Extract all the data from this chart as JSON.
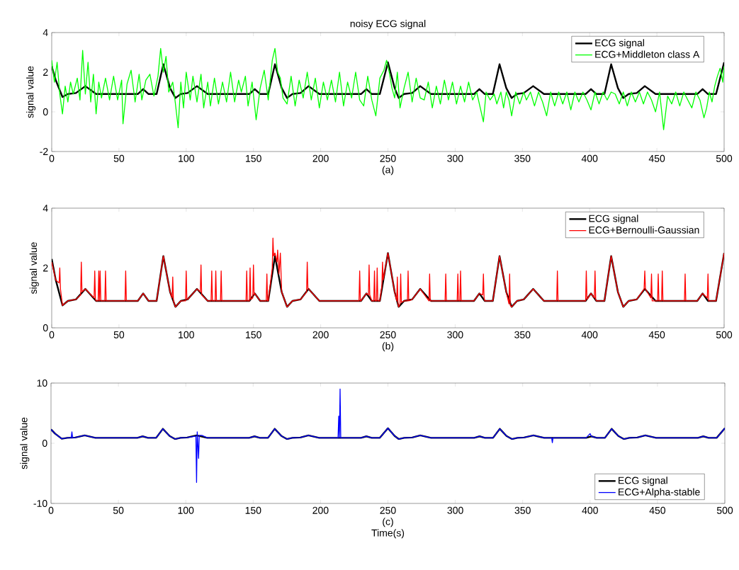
{
  "chart_data": [
    {
      "type": "line",
      "title": "noisy ECG signal",
      "xlabel": "(a)",
      "ylabel": "signal value",
      "xlim": [
        0,
        500
      ],
      "ylim": [
        -2,
        4
      ],
      "xticks": [
        0,
        50,
        100,
        150,
        200,
        250,
        300,
        350,
        400,
        450,
        500
      ],
      "yticks": [
        -2,
        0,
        2,
        4
      ],
      "legend": "top right",
      "series": [
        {
          "name": "ECG signal",
          "color": "#000000",
          "x": [
            0,
            3,
            8,
            12,
            18,
            25,
            33,
            64,
            68,
            72,
            78,
            83,
            88,
            92,
            96,
            101,
            108,
            116,
            147,
            151,
            155,
            161,
            166,
            171,
            175,
            179,
            185,
            191,
            199,
            230,
            234,
            238,
            244,
            250,
            255,
            258,
            262,
            268,
            274,
            282,
            314,
            318,
            322,
            328,
            333,
            338,
            342,
            346,
            351,
            358,
            366,
            397,
            401,
            405,
            411,
            416,
            421,
            425,
            429,
            435,
            441,
            449,
            480,
            484,
            488,
            494,
            500
          ],
          "values": [
            2.3,
            1.6,
            0.75,
            0.9,
            0.95,
            1.3,
            0.9,
            0.9,
            1.15,
            0.9,
            0.9,
            2.4,
            1.2,
            0.7,
            0.9,
            0.95,
            1.3,
            0.9,
            0.9,
            1.15,
            0.9,
            0.9,
            2.4,
            1.2,
            0.7,
            0.9,
            0.95,
            1.3,
            0.9,
            0.9,
            1.15,
            0.9,
            0.9,
            2.5,
            1.2,
            0.7,
            0.9,
            0.95,
            1.3,
            0.9,
            0.9,
            1.15,
            0.9,
            0.9,
            2.4,
            1.2,
            0.7,
            0.9,
            0.95,
            1.3,
            0.9,
            0.9,
            1.15,
            0.9,
            0.9,
            2.4,
            1.2,
            0.7,
            0.9,
            0.95,
            1.3,
            0.9,
            0.9,
            1.15,
            0.9,
            0.9,
            2.5
          ]
        },
        {
          "name": "ECG+Middleton class A",
          "color": "#00ff00",
          "x": [
            0,
            2,
            4,
            6,
            8,
            10,
            12,
            14,
            16,
            19,
            21,
            23,
            25,
            27,
            29,
            31,
            33,
            35,
            37,
            40,
            43,
            46,
            49,
            52,
            53,
            56,
            59,
            62,
            65,
            67,
            70,
            73,
            76,
            79,
            81,
            83,
            85,
            87,
            90,
            92,
            94,
            96,
            98,
            100,
            103,
            105,
            108,
            111,
            113,
            116,
            118,
            121,
            124,
            127,
            130,
            133,
            136,
            139,
            141,
            144,
            146,
            149,
            152,
            155,
            158,
            161,
            164,
            166,
            168,
            170,
            172,
            175,
            178,
            181,
            184,
            187,
            190,
            193,
            196,
            199,
            202,
            205,
            208,
            211,
            214,
            217,
            220,
            223,
            226,
            229,
            232,
            235,
            238,
            241,
            244,
            247,
            249,
            251,
            253,
            255,
            257,
            259,
            262,
            265,
            268,
            271,
            274,
            277,
            280,
            283,
            286,
            289,
            292,
            295,
            298,
            301,
            304,
            307,
            310,
            313,
            316,
            318,
            321,
            323,
            326,
            329,
            331,
            334,
            336,
            338,
            340,
            342,
            345,
            348,
            351,
            353,
            356,
            359,
            362,
            365,
            368,
            371,
            374,
            377,
            380,
            383,
            386,
            389,
            392,
            395,
            398,
            401,
            404,
            407,
            410,
            413,
            416,
            419,
            422,
            425,
            428,
            431,
            434,
            437,
            440,
            443,
            446,
            449,
            452,
            455,
            458,
            461,
            464,
            467,
            470,
            473,
            476,
            479,
            482,
            485,
            487,
            489,
            491,
            493,
            495,
            497,
            499,
            500
          ],
          "values": [
            2.6,
            1.5,
            2.5,
            0.9,
            -0.1,
            1.3,
            0.5,
            1.5,
            0.9,
            1.7,
            0.6,
            3.1,
            0.9,
            2.5,
            0.5,
            1.9,
            -0.1,
            1.5,
            0.7,
            1.7,
            0.6,
            1.8,
            0.6,
            1.6,
            -0.6,
            1.4,
            2.1,
            0.5,
            1.9,
            0.6,
            1.6,
            1.9,
            0.8,
            1.8,
            3.2,
            2.0,
            2.8,
            1.0,
            1.5,
            0.4,
            -0.8,
            1.5,
            0.2,
            2.0,
            0.6,
            1.8,
            0.5,
            1.9,
            0.2,
            1.5,
            0.3,
            1.7,
            0.4,
            1.5,
            0.5,
            2.0,
            0.5,
            1.6,
            1.0,
            1.8,
            0.3,
            1.5,
            -0.4,
            1.2,
            2.1,
            0.6,
            2.6,
            3.2,
            2.0,
            1.7,
            0.7,
            0.4,
            1.8,
            0.3,
            1.6,
            0.7,
            2.0,
            0.6,
            1.7,
            0.2,
            1.5,
            0.6,
            1.6,
            0.5,
            2.0,
            0.3,
            1.5,
            0.7,
            2.0,
            0.6,
            0.3,
            1.8,
            0.6,
            -0.2,
            1.7,
            2.1,
            2.6,
            2.0,
            1.2,
            0.7,
            2.0,
            0.2,
            1.2,
            2.0,
            0.5,
            1.7,
            0.7,
            0.6,
            1.5,
            0.2,
            1.3,
            0.4,
            1.6,
            0.6,
            1.5,
            0.4,
            1.3,
            0.5,
            1.5,
            0.6,
            1.0,
            0.4,
            -0.5,
            1.0,
            0.6,
            0.9,
            0.4,
            1.0,
            0.2,
            1.0,
            0.6,
            -0.2,
            1.0,
            0.4,
            1.0,
            0.6,
            1.0,
            0.3,
            1.0,
            0.5,
            -0.2,
            1.0,
            0.3,
            1.0,
            0.4,
            1.0,
            0.1,
            1.0,
            0.5,
            1.0,
            0.6,
            0.1,
            1.0,
            0.4,
            1.0,
            0.6,
            1.0,
            0.9,
            0.4,
            1.0,
            0.3,
            1.0,
            0.5,
            1.0,
            0.4,
            1.0,
            0.6,
            0.0,
            1.0,
            -0.9,
            0.8,
            0.4,
            1.0,
            0.3,
            1.0,
            0.6,
            0.2,
            1.0,
            0.6,
            -0.3,
            0.2,
            1.0,
            0.5,
            1.3,
            1.8,
            2.2,
            1.5,
            2.3
          ]
        }
      ]
    },
    {
      "type": "line",
      "xlabel": "(b)",
      "ylabel": "signal value",
      "xlim": [
        0,
        500
      ],
      "ylim": [
        0,
        4
      ],
      "xticks": [
        0,
        50,
        100,
        150,
        200,
        250,
        300,
        350,
        400,
        450,
        500
      ],
      "yticks": [
        0,
        2,
        4
      ],
      "legend": "top right",
      "series": [
        {
          "name": "ECG signal",
          "color": "#000000",
          "x": [
            0,
            3,
            8,
            12,
            18,
            25,
            33,
            64,
            68,
            72,
            78,
            83,
            88,
            92,
            96,
            101,
            108,
            116,
            147,
            151,
            155,
            161,
            166,
            171,
            175,
            179,
            185,
            191,
            199,
            230,
            234,
            238,
            244,
            250,
            255,
            258,
            262,
            268,
            274,
            282,
            314,
            318,
            322,
            328,
            333,
            338,
            342,
            346,
            351,
            358,
            366,
            397,
            401,
            405,
            411,
            416,
            421,
            425,
            429,
            435,
            441,
            449,
            480,
            484,
            488,
            494,
            500
          ],
          "values": [
            2.3,
            1.6,
            0.75,
            0.9,
            0.95,
            1.3,
            0.9,
            0.9,
            1.15,
            0.9,
            0.9,
            2.4,
            1.2,
            0.7,
            0.9,
            0.95,
            1.3,
            0.9,
            0.9,
            1.15,
            0.9,
            0.9,
            2.4,
            1.2,
            0.7,
            0.9,
            0.95,
            1.3,
            0.9,
            0.9,
            1.15,
            0.9,
            0.9,
            2.5,
            1.2,
            0.7,
            0.9,
            0.95,
            1.3,
            0.9,
            0.9,
            1.15,
            0.9,
            0.9,
            2.4,
            1.2,
            0.7,
            0.9,
            0.95,
            1.3,
            0.9,
            0.9,
            1.15,
            0.9,
            0.9,
            2.4,
            1.2,
            0.7,
            0.9,
            0.95,
            1.3,
            0.9,
            0.9,
            1.15,
            0.9,
            0.9,
            2.5
          ]
        },
        {
          "name": "ECG+Bernoulli-Gaussian",
          "color": "#ff0000",
          "x": [
            0,
            3,
            5.5,
            6,
            6.5,
            8,
            12,
            18,
            21.5,
            22,
            22.5,
            25,
            31.5,
            32,
            32.5,
            33,
            34.5,
            35,
            35.5,
            36,
            36.5,
            39.5,
            40,
            40.5,
            54.5,
            55,
            55.5,
            64,
            68,
            72,
            78,
            83,
            88,
            89.5,
            90,
            90.5,
            92,
            96,
            99.5,
            100,
            100.5,
            101,
            108,
            110.5,
            111,
            111.5,
            116,
            118.5,
            119,
            119.5,
            121.5,
            122,
            122.5,
            125.5,
            126,
            126.5,
            144.5,
            145,
            145.5,
            147,
            147.5,
            148,
            149.5,
            150,
            150.5,
            151,
            155,
            159.5,
            160,
            160.5,
            161,
            164,
            164.5,
            165,
            166,
            167.5,
            168,
            169,
            170,
            171,
            175,
            179,
            185,
            189.5,
            190,
            190.5,
            191,
            199,
            228.5,
            229,
            229.5,
            230,
            234,
            235.5,
            236,
            236.5,
            238,
            239.5,
            240,
            240.5,
            241.5,
            242,
            242.5,
            244,
            245.5,
            246,
            246.5,
            250,
            255,
            256.5,
            257,
            257.5,
            258,
            259,
            259.5,
            260,
            262,
            264.5,
            265,
            265.5,
            268,
            274,
            280.5,
            281,
            281.5,
            282,
            292.5,
            293,
            293.5,
            301.5,
            302,
            302.5,
            303.5,
            304,
            304.5,
            314,
            318,
            320.5,
            321,
            321.5,
            322,
            328,
            333,
            338,
            340,
            340.5,
            341,
            342,
            346,
            351,
            358,
            366,
            375.5,
            376,
            376.5,
            397,
            397.5,
            398,
            401,
            403.5,
            404,
            404.5,
            405,
            411,
            416,
            421,
            425,
            429,
            435,
            440.5,
            441,
            441.5,
            445.5,
            446,
            446.5,
            449,
            450.5,
            451,
            451.5,
            453.5,
            454,
            454.5,
            470.5,
            471,
            471.5,
            480,
            484,
            487.5,
            488,
            488.5,
            494,
            500
          ],
          "values": [
            2.2,
            1.6,
            1.5,
            2.0,
            1.3,
            0.75,
            0.9,
            0.95,
            1.1,
            2.2,
            1.2,
            1.3,
            1.0,
            1.9,
            0.95,
            0.9,
            0.9,
            1.9,
            0.9,
            1.9,
            0.9,
            0.9,
            1.9,
            0.9,
            0.9,
            1.9,
            0.9,
            0.9,
            1.15,
            0.9,
            0.9,
            2.4,
            1.2,
            1.0,
            1.7,
            0.9,
            0.7,
            0.9,
            0.9,
            1.9,
            0.95,
            0.95,
            1.3,
            1.2,
            2.1,
            1.1,
            0.9,
            0.9,
            1.9,
            0.9,
            0.9,
            1.9,
            0.9,
            0.9,
            1.9,
            0.9,
            0.9,
            1.9,
            0.9,
            0.9,
            2.0,
            0.95,
            1.0,
            2.1,
            1.1,
            1.15,
            0.9,
            0.9,
            1.8,
            0.9,
            0.9,
            2.0,
            3.0,
            2.4,
            2.5,
            2.2,
            2.6,
            1.8,
            2.5,
            1.2,
            0.7,
            0.9,
            0.95,
            1.2,
            2.2,
            1.3,
            1.3,
            0.9,
            0.9,
            1.9,
            0.9,
            0.9,
            1.15,
            1.1,
            2.1,
            1.1,
            0.9,
            0.9,
            1.9,
            0.9,
            0.9,
            2.0,
            0.9,
            0.9,
            1.4,
            2.2,
            1.6,
            2.5,
            1.2,
            0.9,
            1.7,
            0.8,
            0.7,
            0.8,
            1.8,
            0.85,
            0.9,
            0.9,
            1.9,
            0.9,
            0.95,
            1.3,
            0.9,
            1.8,
            0.9,
            0.9,
            0.9,
            1.8,
            0.9,
            0.9,
            1.8,
            0.9,
            0.9,
            1.9,
            0.9,
            0.9,
            1.15,
            1.1,
            1.8,
            1.0,
            0.9,
            0.9,
            2.4,
            1.2,
            0.8,
            1.8,
            0.75,
            0.7,
            0.9,
            0.95,
            1.3,
            0.9,
            0.9,
            1.9,
            0.9,
            0.9,
            1.9,
            0.95,
            1.15,
            1.0,
            1.9,
            0.95,
            0.9,
            0.9,
            2.4,
            1.2,
            0.7,
            0.9,
            0.95,
            1.3,
            1.9,
            1.3,
            1.0,
            1.8,
            0.9,
            0.9,
            0.9,
            1.8,
            0.9,
            0.9,
            1.9,
            0.9,
            0.9,
            1.8,
            0.9,
            0.9,
            1.15,
            1.0,
            1.8,
            0.9,
            0.9,
            2.5
          ]
        }
      ]
    },
    {
      "type": "line",
      "xlabel": "(c)",
      "ylabel": "signal value",
      "annotations": [
        "Time(s)"
      ],
      "xlim": [
        0,
        500
      ],
      "ylim": [
        -10,
        10
      ],
      "xticks": [
        0,
        50,
        100,
        150,
        200,
        250,
        300,
        350,
        400,
        450,
        500
      ],
      "yticks": [
        -10,
        0,
        10
      ],
      "legend": "bottom right",
      "series": [
        {
          "name": "ECG signal",
          "color": "#000000",
          "x": [
            0,
            3,
            8,
            12,
            18,
            25,
            33,
            64,
            68,
            72,
            78,
            83,
            88,
            92,
            96,
            101,
            108,
            116,
            147,
            151,
            155,
            161,
            166,
            171,
            175,
            179,
            185,
            191,
            199,
            230,
            234,
            238,
            244,
            250,
            255,
            258,
            262,
            268,
            274,
            282,
            314,
            318,
            322,
            328,
            333,
            338,
            342,
            346,
            351,
            358,
            366,
            397,
            401,
            405,
            411,
            416,
            421,
            425,
            429,
            435,
            441,
            449,
            480,
            484,
            488,
            494,
            500
          ],
          "values": [
            2.3,
            1.6,
            0.75,
            0.9,
            0.95,
            1.3,
            0.9,
            0.9,
            1.15,
            0.9,
            0.9,
            2.4,
            1.2,
            0.7,
            0.9,
            0.95,
            1.3,
            0.9,
            0.9,
            1.15,
            0.9,
            0.9,
            2.4,
            1.2,
            0.7,
            0.9,
            0.95,
            1.3,
            0.9,
            0.9,
            1.15,
            0.9,
            0.9,
            2.5,
            1.2,
            0.7,
            0.9,
            0.95,
            1.3,
            0.9,
            0.9,
            1.15,
            0.9,
            0.9,
            2.4,
            1.2,
            0.7,
            0.9,
            0.95,
            1.3,
            0.9,
            0.9,
            1.15,
            0.9,
            0.9,
            2.4,
            1.2,
            0.7,
            0.9,
            0.95,
            1.3,
            0.9,
            0.9,
            1.15,
            0.9,
            0.9,
            2.5
          ]
        },
        {
          "name": "ECG+Alpha-stable",
          "color": "#0000ff",
          "x": [
            0,
            3,
            8,
            12,
            15,
            15.5,
            16,
            18,
            25,
            33,
            64,
            68,
            72,
            78,
            83,
            88,
            92,
            96,
            101,
            107.5,
            108,
            108.5,
            109.5,
            110,
            112,
            116,
            147,
            151,
            155,
            161,
            166,
            171,
            175,
            179,
            185,
            191,
            199,
            213,
            213.5,
            214,
            214.5,
            215,
            230,
            234,
            238,
            244,
            250,
            255,
            258,
            262,
            268,
            274,
            282,
            314,
            318,
            322,
            328,
            333,
            338,
            342,
            346,
            351,
            358,
            366,
            371.5,
            372,
            372.5,
            397,
            400,
            401,
            405,
            411,
            416,
            421,
            425,
            429,
            435,
            441,
            449,
            480,
            484,
            488,
            494,
            500
          ],
          "values": [
            2.3,
            1.6,
            0.75,
            0.9,
            0.9,
            1.9,
            0.9,
            0.95,
            1.3,
            0.9,
            0.9,
            1.15,
            0.9,
            0.9,
            2.4,
            1.2,
            0.7,
            0.9,
            0.95,
            1.2,
            -6.5,
            1.9,
            -2.5,
            1.3,
            1.3,
            0.9,
            0.9,
            1.15,
            0.9,
            0.9,
            2.4,
            1.2,
            0.7,
            0.9,
            0.95,
            1.3,
            0.9,
            0.9,
            4.5,
            0.9,
            9.0,
            0.9,
            0.9,
            1.15,
            0.9,
            0.9,
            2.5,
            1.2,
            0.7,
            0.9,
            0.95,
            1.3,
            0.9,
            0.9,
            1.15,
            0.9,
            0.9,
            2.4,
            1.2,
            0.7,
            0.9,
            0.95,
            1.3,
            0.9,
            0.9,
            0.1,
            0.9,
            0.9,
            1.6,
            1.15,
            0.9,
            0.9,
            2.4,
            1.2,
            0.7,
            0.9,
            0.95,
            1.3,
            0.9,
            0.9,
            1.15,
            0.9,
            0.9,
            2.5
          ]
        }
      ]
    }
  ]
}
